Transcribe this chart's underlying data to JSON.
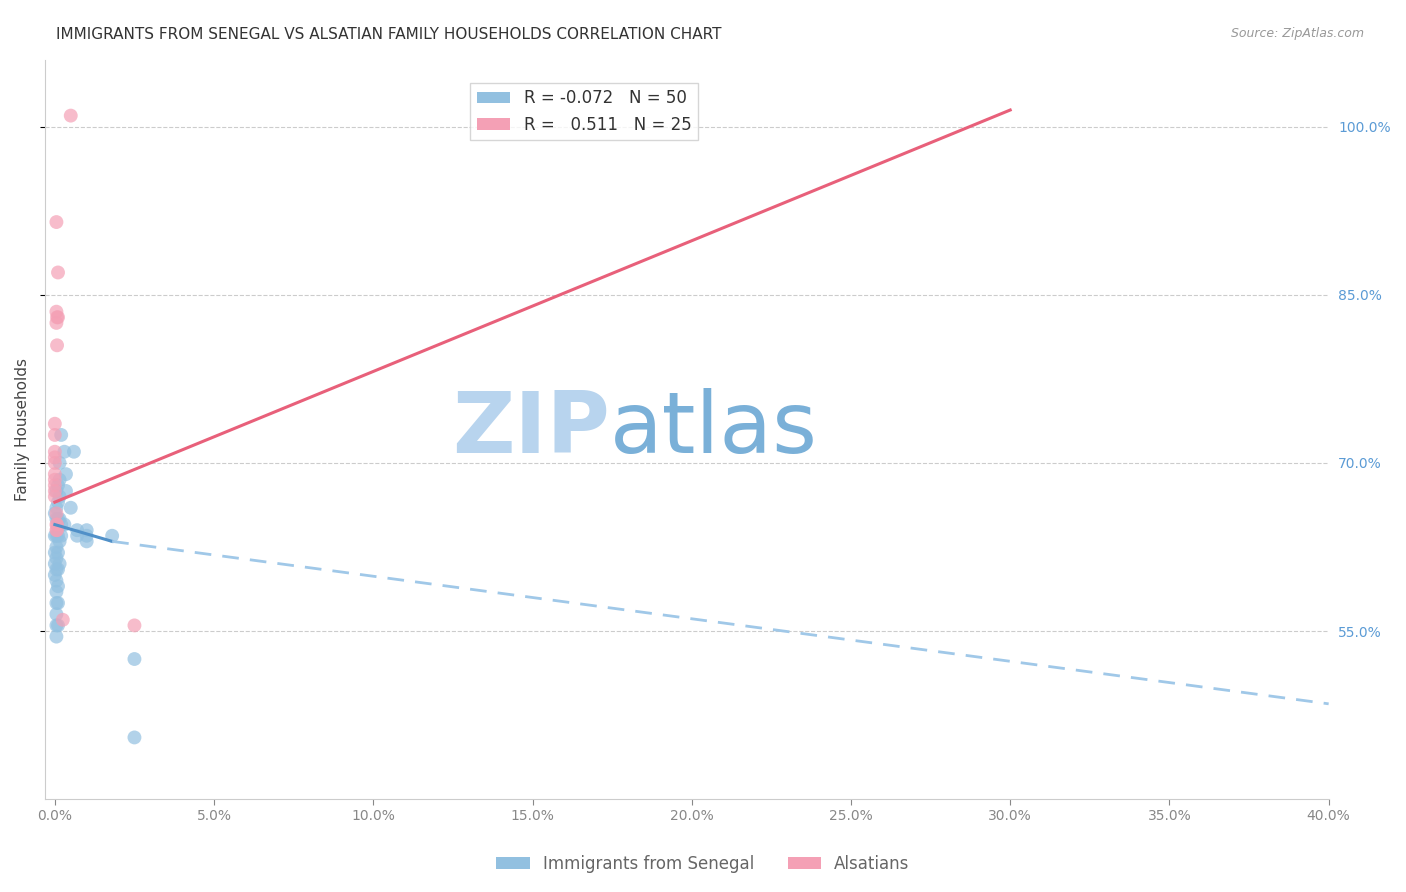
{
  "title": "IMMIGRANTS FROM SENEGAL VS ALSATIAN FAMILY HOUSEHOLDS CORRELATION CHART",
  "source": "Source: ZipAtlas.com",
  "ylabel": "Family Households",
  "xlabel": "",
  "watermark_zip": "ZIP",
  "watermark_atlas": "atlas",
  "xlim": [
    -0.3,
    40.0
  ],
  "ylim": [
    40.0,
    106.0
  ],
  "yticks": [
    55.0,
    70.0,
    85.0,
    100.0
  ],
  "xticks": [
    0.0,
    5.0,
    10.0,
    15.0,
    20.0,
    25.0,
    30.0,
    35.0,
    40.0
  ],
  "blue_R": -0.072,
  "blue_N": 50,
  "pink_R": 0.511,
  "pink_N": 25,
  "blue_color": "#92c0e0",
  "pink_color": "#f4a0b5",
  "blue_line_color": "#5090c8",
  "blue_dash_color": "#a0c8e8",
  "pink_line_color": "#e8607a",
  "blue_scatter": [
    [
      0.0,
      63.5
    ],
    [
      0.0,
      62.0
    ],
    [
      0.0,
      61.0
    ],
    [
      0.0,
      60.0
    ],
    [
      0.0,
      65.5
    ],
    [
      0.05,
      67.5
    ],
    [
      0.05,
      66.0
    ],
    [
      0.05,
      65.0
    ],
    [
      0.05,
      63.5
    ],
    [
      0.05,
      62.5
    ],
    [
      0.05,
      61.5
    ],
    [
      0.05,
      60.5
    ],
    [
      0.05,
      59.5
    ],
    [
      0.05,
      58.5
    ],
    [
      0.05,
      57.5
    ],
    [
      0.05,
      56.5
    ],
    [
      0.05,
      55.5
    ],
    [
      0.05,
      54.5
    ],
    [
      0.1,
      68.0
    ],
    [
      0.1,
      66.5
    ],
    [
      0.1,
      65.0
    ],
    [
      0.1,
      63.5
    ],
    [
      0.1,
      62.0
    ],
    [
      0.1,
      60.5
    ],
    [
      0.1,
      59.0
    ],
    [
      0.1,
      57.5
    ],
    [
      0.1,
      55.5
    ],
    [
      0.15,
      70.0
    ],
    [
      0.15,
      68.5
    ],
    [
      0.15,
      67.0
    ],
    [
      0.15,
      65.0
    ],
    [
      0.15,
      63.0
    ],
    [
      0.15,
      61.0
    ],
    [
      0.2,
      72.5
    ],
    [
      0.2,
      64.5
    ],
    [
      0.2,
      63.5
    ],
    [
      0.3,
      71.0
    ],
    [
      0.3,
      64.5
    ],
    [
      0.35,
      69.0
    ],
    [
      0.35,
      67.5
    ],
    [
      0.5,
      66.0
    ],
    [
      0.6,
      71.0
    ],
    [
      0.7,
      64.0
    ],
    [
      0.7,
      63.5
    ],
    [
      1.0,
      64.0
    ],
    [
      1.0,
      63.5
    ],
    [
      1.0,
      63.0
    ],
    [
      1.8,
      63.5
    ],
    [
      2.5,
      52.5
    ],
    [
      2.5,
      45.5
    ]
  ],
  "pink_scatter": [
    [
      0.0,
      73.5
    ],
    [
      0.0,
      72.5
    ],
    [
      0.0,
      71.0
    ],
    [
      0.0,
      70.5
    ],
    [
      0.0,
      70.0
    ],
    [
      0.0,
      69.0
    ],
    [
      0.0,
      68.5
    ],
    [
      0.0,
      68.0
    ],
    [
      0.0,
      67.5
    ],
    [
      0.0,
      67.0
    ],
    [
      0.05,
      91.5
    ],
    [
      0.05,
      83.5
    ],
    [
      0.05,
      82.5
    ],
    [
      0.05,
      65.5
    ],
    [
      0.05,
      64.5
    ],
    [
      0.05,
      64.0
    ],
    [
      0.07,
      83.0
    ],
    [
      0.07,
      80.5
    ],
    [
      0.07,
      64.5
    ],
    [
      0.07,
      64.0
    ],
    [
      0.1,
      87.0
    ],
    [
      0.1,
      83.0
    ],
    [
      0.25,
      56.0
    ],
    [
      0.5,
      101.0
    ],
    [
      2.5,
      55.5
    ]
  ],
  "blue_line_x0": 0.0,
  "blue_line_y0": 64.5,
  "blue_line_x1": 1.8,
  "blue_line_y1": 63.0,
  "blue_dash_x0": 1.8,
  "blue_dash_y0": 63.0,
  "blue_dash_x1": 40.0,
  "blue_dash_y1": 48.5,
  "pink_line_x0": 0.0,
  "pink_line_y0": 66.5,
  "pink_line_x1": 30.0,
  "pink_line_y1": 101.5,
  "title_fontsize": 11,
  "source_fontsize": 9,
  "axis_label_fontsize": 11,
  "tick_fontsize": 10,
  "legend_fontsize": 12,
  "watermark_fontsize_zip": 62,
  "watermark_fontsize_atlas": 62,
  "watermark_color_zip": "#b8d4ee",
  "watermark_color_atlas": "#7ab0d8",
  "background_color": "#ffffff",
  "grid_color": "#cccccc",
  "right_tick_color": "#5b9bd5",
  "bottom_tick_color": "#888888"
}
